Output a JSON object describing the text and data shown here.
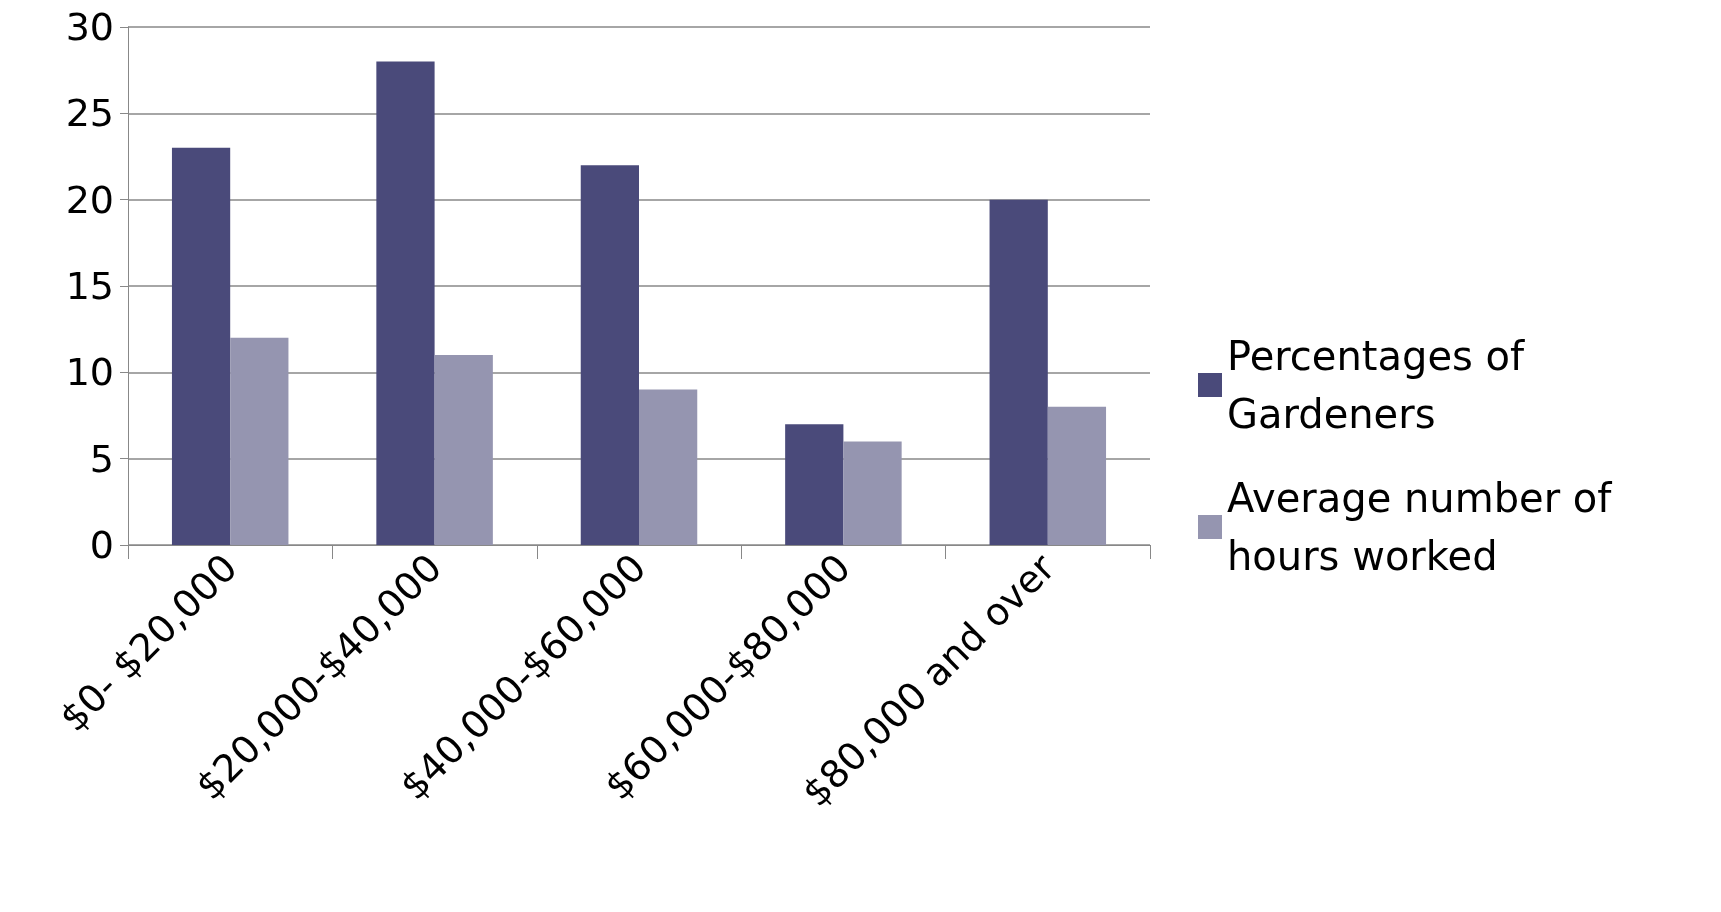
{
  "chart_data": {
    "type": "bar",
    "categories": [
      "$0- $20,000",
      "$20,000-$40,000",
      "$40,000-$60,000",
      "$60,000-$80,000",
      "$80,000 and over"
    ],
    "series": [
      {
        "name": "Percentages of Gardeners",
        "color": "#4a4a7a",
        "values": [
          23,
          28,
          22,
          7,
          20
        ]
      },
      {
        "name": "Average number of hours worked",
        "color": "#9595b0",
        "values": [
          12,
          11,
          9,
          6,
          8
        ]
      }
    ],
    "ylim": [
      0,
      30
    ],
    "yticks": [
      0,
      5,
      10,
      15,
      20,
      25,
      30
    ],
    "grid": "y",
    "legend": "right"
  }
}
